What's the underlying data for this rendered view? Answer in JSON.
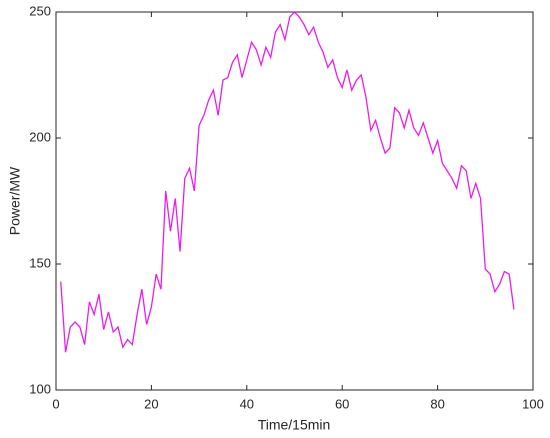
{
  "chart_data": {
    "type": "line",
    "xlabel": "Time/15min",
    "ylabel": "Power/MW",
    "x": [
      1,
      2,
      3,
      4,
      5,
      6,
      7,
      8,
      9,
      10,
      11,
      12,
      13,
      14,
      15,
      16,
      17,
      18,
      19,
      20,
      21,
      22,
      23,
      24,
      25,
      26,
      27,
      28,
      29,
      30,
      31,
      32,
      33,
      34,
      35,
      36,
      37,
      38,
      39,
      40,
      41,
      42,
      43,
      44,
      45,
      46,
      47,
      48,
      49,
      50,
      51,
      52,
      53,
      54,
      55,
      56,
      57,
      58,
      59,
      60,
      61,
      62,
      63,
      64,
      65,
      66,
      67,
      68,
      69,
      70,
      71,
      72,
      73,
      74,
      75,
      76,
      77,
      78,
      79,
      80,
      81,
      82,
      83,
      84,
      85,
      86,
      87,
      88,
      89,
      90,
      91,
      92,
      93,
      94,
      95,
      96
    ],
    "series": [
      {
        "name": "Power",
        "color": "#e81ee8",
        "values": [
          143,
          115,
          125,
          127,
          125,
          118,
          135,
          130,
          138,
          124,
          131,
          123,
          125,
          117,
          120,
          118,
          130,
          140,
          126,
          133,
          146,
          140,
          179,
          163,
          176,
          155,
          184,
          188,
          179,
          205,
          209,
          215,
          219,
          209,
          223,
          224,
          230,
          233,
          224,
          231,
          238,
          235,
          229,
          236,
          232,
          242,
          245,
          239,
          248,
          250,
          248,
          245,
          241,
          244,
          238,
          234,
          228,
          231,
          224,
          220,
          227,
          219,
          223,
          225,
          216,
          203,
          207,
          200,
          194,
          196,
          212,
          210,
          204,
          211,
          204,
          201,
          206,
          200,
          194,
          199,
          190,
          187,
          184,
          180,
          189,
          187,
          176,
          182,
          176,
          148,
          146,
          139,
          142,
          147,
          146,
          132
        ]
      }
    ],
    "xlim": [
      0,
      100
    ],
    "xticks": [
      0,
      20,
      40,
      60,
      80,
      100
    ],
    "ylim": [
      100,
      250
    ],
    "yticks": [
      100,
      150,
      200,
      250
    ]
  }
}
